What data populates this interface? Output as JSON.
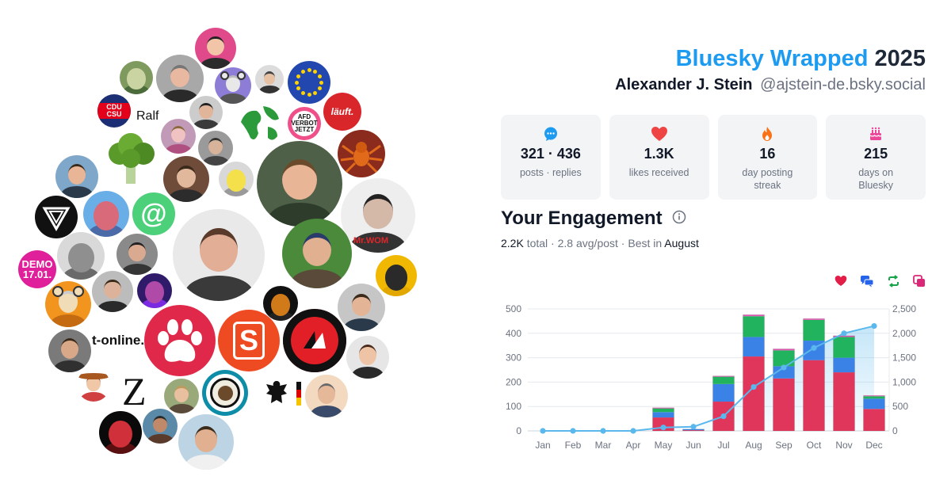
{
  "header": {
    "brand": "Bluesky Wrapped",
    "year": "2025",
    "user_name": "Alexander J. Stein",
    "handle": "@ajstein-de.bsky.social"
  },
  "stats": [
    {
      "icon": "chat-bubble-icon",
      "value": "321 · 436",
      "label": "posts · replies",
      "color": "#1d9bf0"
    },
    {
      "icon": "heart-icon",
      "value": "1.3K",
      "label": "likes received",
      "color": "#ef4444"
    },
    {
      "icon": "flame-icon",
      "value": "16",
      "label": "day posting streak",
      "color": "#f97316"
    },
    {
      "icon": "cake-icon",
      "value": "215",
      "label": "days on Bluesky",
      "color": "#ec4899"
    }
  ],
  "engagement": {
    "title": "Your Engagement",
    "total": "2.2K",
    "total_word": "total",
    "avg": "2.8 avg/post",
    "best_prefix": "Best in",
    "best_month": "August",
    "legend_icons": [
      {
        "icon": "heart-icon",
        "color": "#e11d48"
      },
      {
        "icon": "replies-icon",
        "color": "#2563eb"
      },
      {
        "icon": "repost-icon",
        "color": "#16a34a"
      },
      {
        "icon": "quote-icon",
        "color": "#db2777"
      }
    ]
  },
  "chart_data": {
    "type": "bar",
    "categories": [
      "Jan",
      "Feb",
      "Mar",
      "Apr",
      "May",
      "Jun",
      "Jul",
      "Aug",
      "Sep",
      "Oct",
      "Nov",
      "Dec"
    ],
    "series": [
      {
        "values": [
          0,
          0,
          0,
          0,
          55,
          3,
          120,
          305,
          215,
          290,
          240,
          90
        ],
        "color": "#e0365b"
      },
      {
        "values": [
          0,
          0,
          0,
          0,
          22,
          4,
          72,
          80,
          50,
          80,
          60,
          42
        ],
        "color": "#3b82e6"
      },
      {
        "values": [
          0,
          0,
          0,
          0,
          15,
          0,
          30,
          85,
          65,
          85,
          85,
          10
        ],
        "color": "#22b35e"
      },
      {
        "values": [
          0,
          0,
          0,
          0,
          3,
          0,
          3,
          6,
          6,
          5,
          5,
          3
        ],
        "color": "#e056b0"
      }
    ],
    "cumulative": [
      0,
      0,
      0,
      0,
      70,
      85,
      300,
      900,
      1300,
      1700,
      2000,
      2150
    ],
    "cumulative_color": "#5ab8ec",
    "ylim": [
      0,
      500
    ],
    "y2lim": [
      0,
      2500
    ],
    "yticks": [
      "0",
      "100",
      "200",
      "300",
      "400",
      "500"
    ],
    "y2ticks": [
      "0",
      "500",
      "1,000",
      "1,500",
      "2,000",
      "2,500"
    ],
    "grid": true
  },
  "cloud": {
    "text_ralf": "Ralf",
    "text_tonline": "t-online.",
    "text_z": "Z",
    "text_demo1": "DEMO",
    "text_demo2": "17.01.",
    "text_lauft": "läuft.",
    "text_afd1": "AFD",
    "text_afd2": "VERBOT",
    "text_afd3": "JETZT",
    "text_cdu": "CDU CSU",
    "text_mrwom": "Mr.WOM",
    "text_s": "S",
    "text_at": "@"
  }
}
